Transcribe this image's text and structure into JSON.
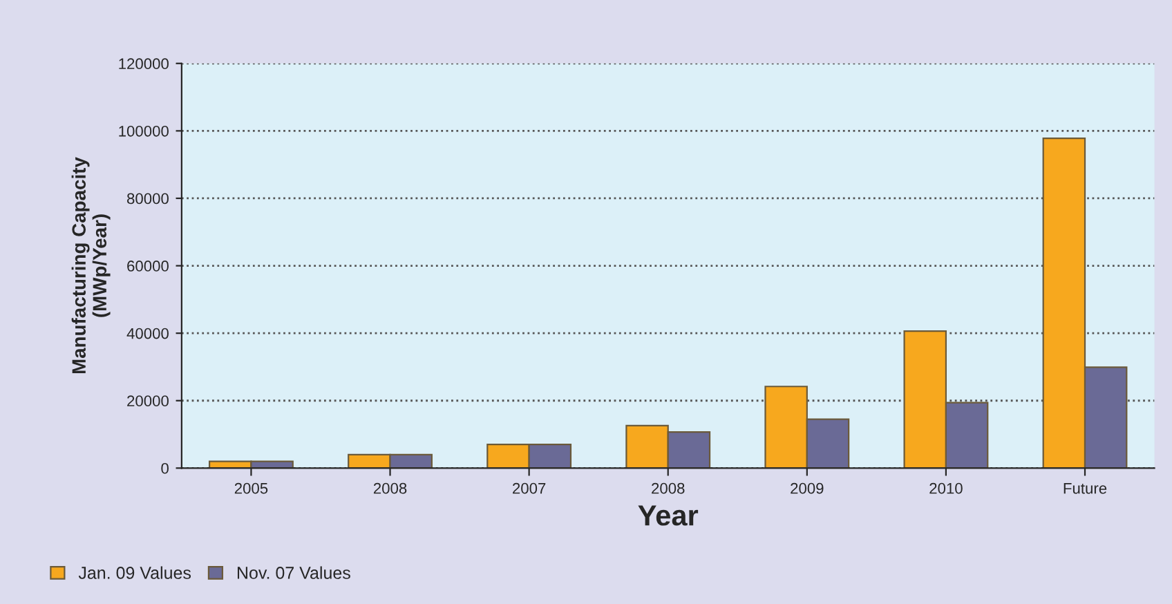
{
  "chart_data": {
    "type": "bar",
    "xlabel": "Year",
    "ylabel": "Manufacturing Capacity\n(MWp/Year)",
    "categories": [
      "2005",
      "2008",
      "2007",
      "2008",
      "2009",
      "2010",
      "Future"
    ],
    "series": [
      {
        "name": "Jan. 09 Values",
        "color": "#f7a81e",
        "values": [
          2000,
          4000,
          7000,
          12600,
          24200,
          40600,
          97800
        ]
      },
      {
        "name": "Nov. 07 Values",
        "color": "#6a6a96",
        "values": [
          2000,
          4000,
          7000,
          10700,
          14500,
          19400,
          29900
        ]
      }
    ],
    "ylim": [
      0,
      120000
    ],
    "yticks": [
      0,
      20000,
      40000,
      60000,
      80000,
      100000,
      120000
    ],
    "grid": "y",
    "line_style": "dotted",
    "legend": "bottom left"
  }
}
